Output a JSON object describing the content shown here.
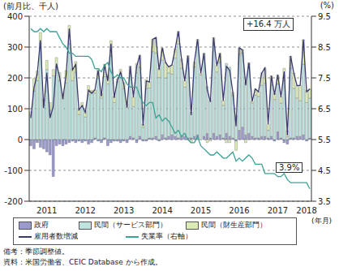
{
  "chart_data": {
    "type": "bar",
    "stacked": true,
    "grid": true,
    "legend": "bottom",
    "y_label": "(前月比、千人)",
    "y2_label": "(%)",
    "x_label": "(年月)",
    "categories": [
      null,
      null,
      null,
      null,
      null,
      "2011",
      null,
      null,
      null,
      null,
      null,
      null,
      null,
      null,
      null,
      null,
      null,
      "2012",
      null,
      null,
      null,
      null,
      null,
      null,
      null,
      null,
      null,
      null,
      null,
      "2013",
      null,
      null,
      null,
      null,
      null,
      null,
      null,
      null,
      null,
      null,
      null,
      "2014",
      null,
      null,
      null,
      null,
      null,
      null,
      null,
      null,
      null,
      null,
      null,
      "2015",
      null,
      null,
      null,
      null,
      null,
      null,
      null,
      null,
      null,
      null,
      null,
      "2016",
      null,
      null,
      null,
      null,
      null,
      null,
      null,
      null,
      null,
      null,
      null,
      "2017",
      null,
      null,
      null,
      null,
      null,
      null,
      null,
      null,
      "2018",
      null
    ],
    "ylim": [
      -200,
      400
    ],
    "yticks": [
      -200,
      -100,
      0,
      100,
      200,
      300,
      400
    ],
    "y2lim": [
      3.5,
      9.5
    ],
    "y2ticks": [
      3.5,
      4.5,
      5.5,
      6.5,
      7.5,
      8.5,
      9.5
    ],
    "series": [
      {
        "name": "政府",
        "type": "bar",
        "color": "#9a9acc",
        "values": [
          -20,
          -30,
          -10,
          -25,
          -30,
          -40,
          -50,
          -120,
          -20,
          -15,
          -20,
          -15,
          -10,
          -5,
          -10,
          -5,
          -10,
          -5,
          -15,
          -10,
          5,
          -5,
          -10,
          5,
          -20,
          -10,
          -5,
          -5,
          -10,
          -5,
          -10,
          10,
          5,
          -10,
          10,
          -5,
          -5,
          5,
          5,
          10,
          -5,
          15,
          5,
          10,
          15,
          10,
          5,
          10,
          10,
          5,
          5,
          10,
          15,
          0,
          10,
          20,
          5,
          20,
          10,
          15,
          5,
          20,
          10,
          5,
          -5,
          30,
          40,
          15,
          20,
          10,
          5,
          5,
          10,
          10,
          5,
          10,
          -5,
          25,
          5,
          -10,
          -15,
          5,
          5,
          10,
          10,
          15,
          -5,
          5
        ]
      },
      {
        "name": "民間（サービス部門）",
        "type": "bar",
        "color": "#bfe3de",
        "values": [
          80,
          158,
          192,
          312,
          112,
          227,
          95,
          207,
          236,
          192,
          132,
          184,
          310,
          191,
          218,
          81,
          110,
          73,
          145,
          155,
          146,
          200,
          135,
          199,
          180,
          271,
          120,
          187,
          213,
          165,
          104,
          203,
          102,
          217,
          224,
          40,
          165,
          162,
          280,
          271,
          201,
          242,
          195,
          206,
          197,
          254,
          306,
          221,
          160,
          257,
          84,
          226,
          300,
          210,
          250,
          152,
          122,
          286,
          209,
          235,
          106,
          227,
          225,
          138,
          78,
          247,
          241,
          171,
          224,
          109,
          139,
          135,
          166,
          172,
          25,
          167,
          130,
          155,
          113,
          191,
          9,
          226,
          161,
          125,
          116,
          229,
          120,
          129
        ]
      },
      {
        "name": "民間（財生産部門）",
        "type": "bar",
        "color": "#dcebb6",
        "values": [
          10,
          40,
          30,
          35,
          20,
          30,
          25,
          20,
          30,
          25,
          20,
          40,
          60,
          40,
          35,
          20,
          10,
          20,
          30,
          5,
          10,
          30,
          15,
          40,
          30,
          50,
          20,
          10,
          15,
          20,
          10,
          25,
          30,
          30,
          40,
          10,
          30,
          20,
          40,
          50,
          30,
          40,
          50,
          20,
          30,
          30,
          40,
          30,
          20,
          10,
          -10,
          15,
          10,
          5,
          20,
          -10,
          -5,
          25,
          20,
          30,
          15,
          -10,
          -10,
          10,
          -30,
          20,
          10,
          -10,
          5,
          5,
          20,
          15,
          40,
          50,
          20,
          30,
          20,
          30,
          20,
          40,
          20,
          40,
          50,
          40,
          50,
          80,
          40,
          30
        ]
      },
      {
        "name": "雇用者数増減",
        "type": "line",
        "color": "#3a3a6e",
        "values": [
          70,
          168,
          212,
          322,
          102,
          217,
          70,
          107,
          246,
          202,
          132,
          209,
          360,
          226,
          243,
          96,
          110,
          88,
          160,
          150,
          161,
          225,
          140,
          244,
          190,
          311,
          135,
          192,
          218,
          180,
          104,
          238,
          137,
          237,
          274,
          45,
          190,
          187,
          325,
          331,
          226,
          297,
          250,
          236,
          242,
          294,
          351,
          261,
          190,
          272,
          79,
          251,
          325,
          215,
          280,
          162,
          122,
          331,
          239,
          280,
          126,
          237,
          225,
          153,
          43,
          297,
          291,
          176,
          249,
          124,
          164,
          155,
          216,
          232,
          50,
          207,
          145,
          210,
          138,
          221,
          14,
          271,
          216,
          175,
          176,
          324,
          155,
          164
        ]
      },
      {
        "name": "失業率（右軸）",
        "type": "line",
        "axis": "y2",
        "color": "#3aa394",
        "values": [
          9.1,
          9.0,
          9.0,
          9.1,
          9.0,
          9.1,
          9.0,
          9.0,
          9.0,
          8.8,
          8.6,
          8.5,
          8.3,
          8.3,
          8.2,
          8.2,
          8.2,
          8.2,
          8.2,
          8.1,
          7.8,
          7.8,
          7.7,
          7.9,
          8.0,
          7.7,
          7.5,
          7.6,
          7.5,
          7.5,
          7.3,
          7.2,
          7.2,
          7.2,
          6.9,
          6.7,
          6.6,
          6.7,
          6.7,
          6.2,
          6.3,
          6.1,
          6.2,
          6.1,
          5.9,
          5.7,
          5.8,
          5.6,
          5.7,
          5.5,
          5.4,
          5.4,
          5.6,
          5.3,
          5.2,
          5.1,
          5.0,
          5.0,
          5.1,
          5.0,
          4.9,
          4.9,
          5.0,
          5.1,
          4.8,
          4.9,
          4.8,
          4.9,
          5.0,
          4.9,
          4.7,
          4.7,
          4.7,
          4.4,
          4.4,
          4.4,
          4.4,
          4.3,
          4.3,
          4.4,
          4.2,
          4.1,
          4.1,
          4.1,
          4.1,
          4.1,
          4.1,
          3.9
        ]
      }
    ],
    "annotations": [
      {
        "text": "+16.4 万人"
      },
      {
        "text": "3.9%"
      }
    ],
    "notes": [
      "備考：季節調整値。",
      "資料：米国労働省、CEIC Database から作成。"
    ]
  }
}
